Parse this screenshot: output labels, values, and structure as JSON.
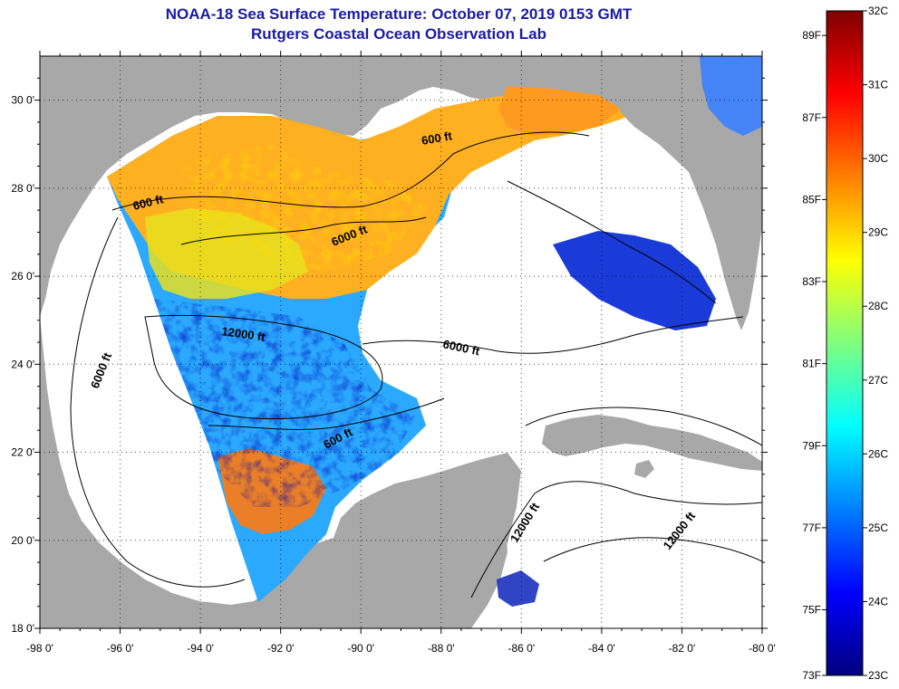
{
  "title": {
    "line1": "NOAA-18 Sea Surface Temperature:  October 07, 2019 0153 GMT",
    "line2": "Rutgers Coastal Ocean Observation Lab"
  },
  "axes": {
    "x_ticks": [
      {
        "value": -98,
        "label": "-98 0'"
      },
      {
        "value": -96,
        "label": "-96 0'"
      },
      {
        "value": -94,
        "label": "-94 0'"
      },
      {
        "value": -92,
        "label": "-92 0'"
      },
      {
        "value": -90,
        "label": "-90 0'"
      },
      {
        "value": -88,
        "label": "-88 0'"
      },
      {
        "value": -86,
        "label": "-86 0'"
      },
      {
        "value": -84,
        "label": "-84 0'"
      },
      {
        "value": -82,
        "label": "-82 0'"
      },
      {
        "value": -80,
        "label": "-80 0'"
      }
    ],
    "y_ticks": [
      {
        "value": 18,
        "label": "18 0'"
      },
      {
        "value": 20,
        "label": "20 0'"
      },
      {
        "value": 22,
        "label": "22 0'"
      },
      {
        "value": 24,
        "label": "24 0'"
      },
      {
        "value": 26,
        "label": "26 0'"
      },
      {
        "value": 28,
        "label": "28 0'"
      },
      {
        "value": 30,
        "label": "30 0'"
      }
    ],
    "lon_range": [
      -98,
      -80
    ],
    "lat_range": [
      18,
      31
    ]
  },
  "contour_labels": [
    {
      "text": "600 ft"
    },
    {
      "text": "600 ft"
    },
    {
      "text": "6000 ft"
    },
    {
      "text": "6000 ft"
    },
    {
      "text": "12000 ft"
    },
    {
      "text": "6000 ft"
    },
    {
      "text": "600 ft"
    },
    {
      "text": "12000 ft"
    },
    {
      "text": "12000 ft"
    }
  ],
  "colorbar": {
    "celsius_range": [
      23,
      32
    ],
    "celsius": [
      {
        "value": 32,
        "label": "32C"
      },
      {
        "value": 31,
        "label": "31C"
      },
      {
        "value": 30,
        "label": "30C"
      },
      {
        "value": 29,
        "label": "29C"
      },
      {
        "value": 28,
        "label": "28C"
      },
      {
        "value": 27,
        "label": "27C"
      },
      {
        "value": 26,
        "label": "26C"
      },
      {
        "value": 25,
        "label": "25C"
      },
      {
        "value": 24,
        "label": "24C"
      },
      {
        "value": 23,
        "label": "23C"
      }
    ],
    "fahrenheit": [
      {
        "value": 89,
        "label": "89F"
      },
      {
        "value": 87,
        "label": "87F"
      },
      {
        "value": 85,
        "label": "85F"
      },
      {
        "value": 83,
        "label": "83F"
      },
      {
        "value": 81,
        "label": "81F"
      },
      {
        "value": 79,
        "label": "79F"
      },
      {
        "value": 77,
        "label": "77F"
      },
      {
        "value": 75,
        "label": "75F"
      },
      {
        "value": 73,
        "label": "73F"
      }
    ],
    "colors": [
      "#00007f",
      "#0000ff",
      "#007fff",
      "#00ffff",
      "#7fff7f",
      "#ffff00",
      "#ff7f00",
      "#ff0000",
      "#7f0000"
    ]
  },
  "colors": {
    "land": "#a8a8a8",
    "no_data": "#ffffff",
    "title": "#1a1aa8"
  }
}
